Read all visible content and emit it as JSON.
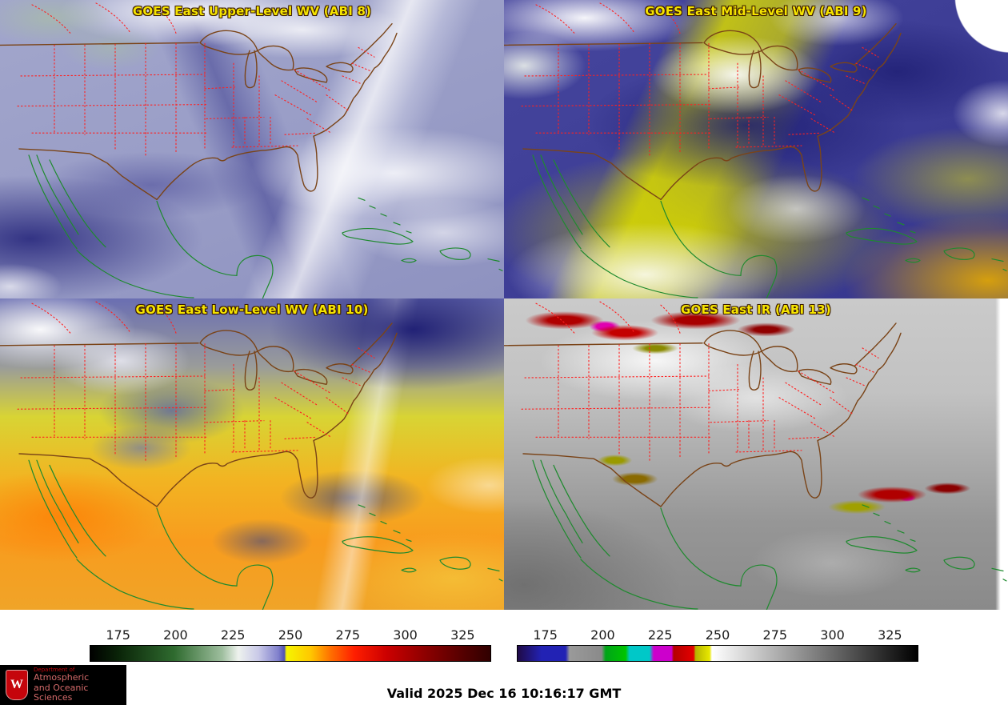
{
  "panels": [
    {
      "id": "abi8",
      "title": "GOES East Upper-Level WV (ABI 8)"
    },
    {
      "id": "abi9",
      "title": "GOES East Mid-Level WV (ABI 9)"
    },
    {
      "id": "abi10",
      "title": "GOES East Low-Level WV (ABI 10)"
    },
    {
      "id": "abi13",
      "title": "GOES East IR (ABI 13)"
    }
  ],
  "chart_data": [
    {
      "type": "heatmap",
      "role": "colorbar-water-vapor",
      "units": "K",
      "applies_to": [
        "ABI 8",
        "ABI 9",
        "ABI 10"
      ],
      "tick_labels": [
        "175",
        "200",
        "225",
        "250",
        "275",
        "300",
        "325"
      ],
      "tick_positions_pct": [
        7.1,
        21.4,
        35.7,
        50,
        64.3,
        78.6,
        92.9
      ],
      "value_range": [
        162.5,
        337.5
      ],
      "gradient_stops": [
        {
          "color": "#000000",
          "pos": 0
        },
        {
          "color": "#0a2408",
          "pos": 7
        },
        {
          "color": "#2f6b2f",
          "pos": 21
        },
        {
          "color": "#9fbf9f",
          "pos": 33
        },
        {
          "color": "#eef2ee",
          "pos": 37
        },
        {
          "color": "#c9c9e8",
          "pos": 42
        },
        {
          "color": "#8080cc",
          "pos": 47
        },
        {
          "color": "#5050b0",
          "pos": 48.5
        },
        {
          "color": "#f5f500",
          "pos": 49
        },
        {
          "color": "#ffc800",
          "pos": 55
        },
        {
          "color": "#ff7000",
          "pos": 60
        },
        {
          "color": "#ff1e00",
          "pos": 66
        },
        {
          "color": "#cc0000",
          "pos": 74
        },
        {
          "color": "#8b0000",
          "pos": 84
        },
        {
          "color": "#550000",
          "pos": 93
        },
        {
          "color": "#300000",
          "pos": 100
        }
      ]
    },
    {
      "type": "heatmap",
      "role": "colorbar-infrared",
      "units": "K",
      "applies_to": [
        "ABI 13"
      ],
      "tick_labels": [
        "175",
        "200",
        "225",
        "250",
        "275",
        "300",
        "325"
      ],
      "tick_positions_pct": [
        7.1,
        21.4,
        35.7,
        50,
        64.3,
        78.6,
        92.9
      ],
      "value_range": [
        162.5,
        337.5
      ],
      "gradient_stops": [
        {
          "color": "#200a46",
          "pos": 0
        },
        {
          "color": "#2222b4",
          "pos": 6
        },
        {
          "color": "#2222b4",
          "pos": 12
        },
        {
          "color": "#9a9a9a",
          "pos": 13
        },
        {
          "color": "#8a8a8a",
          "pos": 21
        },
        {
          "color": "#00a418",
          "pos": 22
        },
        {
          "color": "#00c400",
          "pos": 27
        },
        {
          "color": "#00c8c8",
          "pos": 28
        },
        {
          "color": "#00c8c8",
          "pos": 33
        },
        {
          "color": "#cc00cc",
          "pos": 34
        },
        {
          "color": "#cc00cc",
          "pos": 38.5
        },
        {
          "color": "#b40000",
          "pos": 39
        },
        {
          "color": "#e40000",
          "pos": 44
        },
        {
          "color": "#b4b400",
          "pos": 44.5
        },
        {
          "color": "#e8e800",
          "pos": 48
        },
        {
          "color": "#ffffff",
          "pos": 48.6
        },
        {
          "color": "#000000",
          "pos": 100
        }
      ]
    }
  ],
  "footer": {
    "valid_time": "Valid 2025 Dec 16 10:16:17 GMT"
  },
  "logo": {
    "department": "Department of",
    "name_line1": "Atmospheric",
    "name_line2": "and Oceanic Sciences",
    "crest_letter": "W"
  },
  "overlay_colors": {
    "state_borders": "#ff2020",
    "national_borders_coast": "#7a4418",
    "water_coastlines": "#1e8a2e",
    "panel_title_text": "#f5e400"
  }
}
